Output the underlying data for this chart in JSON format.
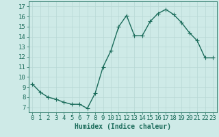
{
  "x": [
    0,
    1,
    2,
    3,
    4,
    5,
    6,
    7,
    8,
    9,
    10,
    11,
    12,
    13,
    14,
    15,
    16,
    17,
    18,
    19,
    20,
    21,
    22,
    23
  ],
  "y": [
    9.3,
    8.5,
    8.0,
    7.8,
    7.5,
    7.3,
    7.3,
    6.9,
    8.4,
    11.0,
    12.6,
    15.0,
    16.1,
    14.1,
    14.1,
    15.5,
    16.3,
    16.7,
    16.2,
    15.4,
    14.4,
    13.6,
    11.9,
    11.9
  ],
  "line_color": "#1a6b5a",
  "marker": "+",
  "markersize": 4,
  "linewidth": 1.0,
  "bg_color": "#ceeae7",
  "grid_color": "#b8d8d5",
  "xlabel": "Humidex (Indice chaleur)",
  "xlim": [
    -0.5,
    23.5
  ],
  "ylim": [
    6.5,
    17.5
  ],
  "xtick_labels": [
    "0",
    "1",
    "2",
    "3",
    "4",
    "5",
    "6",
    "7",
    "8",
    "9",
    "10",
    "11",
    "12",
    "13",
    "14",
    "15",
    "16",
    "17",
    "18",
    "19",
    "20",
    "21",
    "22",
    "23"
  ],
  "ytick_values": [
    7,
    8,
    9,
    10,
    11,
    12,
    13,
    14,
    15,
    16,
    17
  ],
  "tick_color": "#1a6b5a",
  "label_color": "#1a6b5a",
  "xlabel_fontsize": 7,
  "tick_fontsize": 6.5
}
